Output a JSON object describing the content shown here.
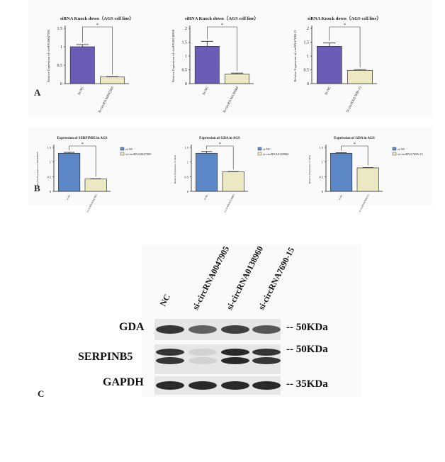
{
  "panel_letters": {
    "a": "A",
    "b": "B",
    "c": "C"
  },
  "chart_data": [
    {
      "type": "bar",
      "panel": "A",
      "title": "siRNA Knock down（AGS cell line）",
      "ylabel": "Relative Expression of circRNA0047905",
      "categories": [
        "Si-NC",
        "Si-circRNA0047905"
      ],
      "values": [
        1.0,
        0.18
      ],
      "errors": [
        0.06,
        0.01
      ],
      "ylim": [
        0,
        1.5
      ],
      "yticks": [
        0,
        0.5,
        1.0,
        1.5
      ],
      "colors": [
        "#6a5bb5",
        "#ece9c2"
      ],
      "significance": "*"
    },
    {
      "type": "bar",
      "panel": "A",
      "title": "siRNA Knock down（AGS cell line）",
      "ylabel": "Relative Expression of circRNA0138960",
      "categories": [
        "Si-NC",
        "Si-circRNA0138960"
      ],
      "values": [
        1.35,
        0.35
      ],
      "errors": [
        0.18,
        0.03
      ],
      "ylim": [
        0,
        2.0
      ],
      "yticks": [
        0,
        0.5,
        1.0,
        1.5,
        2.0
      ],
      "colors": [
        "#6a5bb5",
        "#ece9c2"
      ],
      "significance": "*"
    },
    {
      "type": "bar",
      "panel": "A",
      "title": "siRNA Knock down（AGS cell line）",
      "ylabel": "Relative Expression of circRNA7690-15",
      "categories": [
        "Si-NC",
        "Si-circRNA7690-15"
      ],
      "values": [
        1.35,
        0.48
      ],
      "errors": [
        0.12,
        0.03
      ],
      "ylim": [
        0,
        2.0
      ],
      "yticks": [
        0,
        0.5,
        1.0,
        1.5,
        2.0
      ],
      "colors": [
        "#6a5bb5",
        "#ece9c2"
      ],
      "significance": "*"
    },
    {
      "type": "bar",
      "panel": "B",
      "title": "Expression of SERPINB5 in AGS",
      "ylabel": "Relative Expression of SERPINB5",
      "categories": [
        "si-NC",
        "si-circRNA0047905"
      ],
      "values": [
        1.3,
        0.42
      ],
      "errors": [
        0.03,
        0.01
      ],
      "ylim": [
        0,
        1.5
      ],
      "yticks": [
        0,
        0.5,
        1.0,
        1.5
      ],
      "colors": [
        "#5b86c8",
        "#ece9c2"
      ],
      "legend": [
        "si-NC",
        "si-circRNA0047905"
      ],
      "significance": "*"
    },
    {
      "type": "bar",
      "panel": "B",
      "title": "Expression of GDA in AGS",
      "ylabel": "Relative Expression of GDA",
      "categories": [
        "si-NC",
        "si-circRNA0138960"
      ],
      "values": [
        1.3,
        0.67
      ],
      "errors": [
        0.06,
        0.01
      ],
      "ylim": [
        0,
        1.5
      ],
      "yticks": [
        0,
        0.5,
        1.0,
        1.5
      ],
      "colors": [
        "#5b86c8",
        "#ece9c2"
      ],
      "legend": [
        "si-NC",
        "si-circRNA0138960"
      ],
      "significance": "*"
    },
    {
      "type": "bar",
      "panel": "B",
      "title": "Expression of GDA in AGS",
      "ylabel": "Relative Expression of GDA",
      "categories": [
        "si-NC",
        "si-circRNA7690-15"
      ],
      "values": [
        1.3,
        0.8
      ],
      "errors": [
        0.02,
        0.01
      ],
      "ylim": [
        0,
        1.5
      ],
      "yticks": [
        0,
        0.5,
        1.0,
        1.5
      ],
      "colors": [
        "#5b86c8",
        "#ece9c2"
      ],
      "legend": [
        "si-NC",
        "si-circRNA7690-15"
      ],
      "significance": "*"
    }
  ],
  "western_blot": {
    "lanes": [
      "NC",
      "si-circRNA0047905",
      "si-circRNA0138960",
      "si-circRNA7690-15"
    ],
    "rows": [
      {
        "protein": "GDA",
        "kda": "-- 50KDa",
        "intensity": [
          0.9,
          0.7,
          0.85,
          0.75
        ]
      },
      {
        "protein": "SERPINB5",
        "kda": "-- 50KDa",
        "intensity": [
          0.9,
          0.2,
          0.95,
          0.9
        ]
      },
      {
        "protein": "GAPDH",
        "kda": "-- 35KDa",
        "intensity": [
          0.95,
          0.95,
          0.95,
          0.95
        ]
      }
    ]
  }
}
